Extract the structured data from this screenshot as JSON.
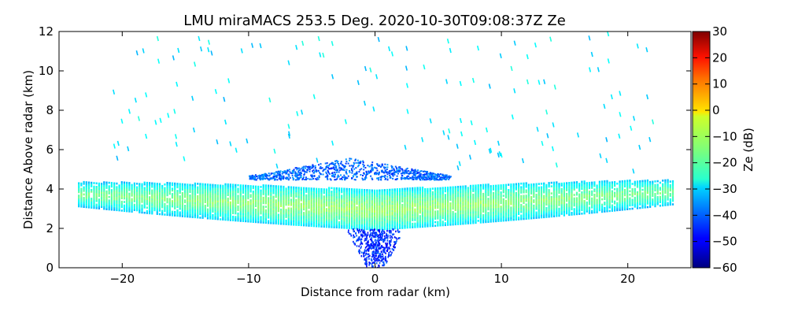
{
  "chart_data": {
    "type": "heatmap",
    "title": "LMU miraMACS 253.5 Deg. 2020-10-30T09:08:37Z  Ze",
    "xlabel": "Distance from radar (km)",
    "ylabel": "Distance Above radar  (km)",
    "xlim": [
      -25,
      25
    ],
    "ylim": [
      0,
      12
    ],
    "x_ticks": [
      -20,
      -10,
      0,
      10,
      20
    ],
    "x_tick_labels": [
      "−20",
      "−10",
      "0",
      "10",
      "20"
    ],
    "y_ticks": [
      0,
      2,
      4,
      6,
      8,
      10,
      12
    ],
    "y_tick_labels": [
      "0",
      "2",
      "4",
      "6",
      "8",
      "10",
      "12"
    ],
    "colorbar": {
      "label": "Ze (dB)",
      "range": [
        -60,
        30
      ],
      "ticks": [
        -60,
        -50,
        -40,
        -30,
        -20,
        -10,
        0,
        10,
        20,
        30
      ],
      "tick_labels": [
        "−60",
        "−50",
        "−40",
        "−30",
        "−20",
        "−10",
        "0",
        "10",
        "20",
        "30"
      ],
      "colormap": "jet"
    },
    "regions": [
      {
        "name": "main cloud layer",
        "x_range_km": [
          -23.5,
          23.5
        ],
        "center_height_km": [
          3.7,
          2.9,
          3.8
        ],
        "thickness_km": 1.7,
        "ze_dB": -20
      },
      {
        "name": "core layer",
        "x_range_km": [
          -10,
          12
        ],
        "center_height_km": 3.2,
        "ze_dB": -12
      },
      {
        "name": "upper fringe",
        "x_range_km": [
          -10,
          6
        ],
        "height_km": [
          4.5,
          5.6
        ],
        "ze_dB": -40
      },
      {
        "name": "low-level echoes near radar",
        "x_range_km": [
          -3,
          3
        ],
        "height_km": [
          0,
          2
        ],
        "ze_dB": -45
      },
      {
        "name": "sparse upper echoes",
        "x_range_km": [
          -21,
          22
        ],
        "height_km": [
          5,
          12
        ],
        "ze_dB": -28
      }
    ]
  }
}
